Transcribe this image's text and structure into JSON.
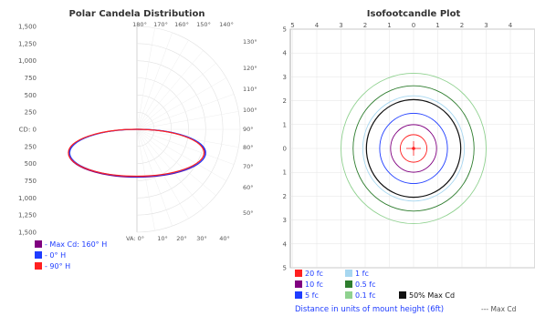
{
  "chart_data": [
    {
      "type": "polar",
      "title": "Polar Candela Distribution",
      "radial_ticks_left": [
        "1,500",
        "1,250",
        "1,000",
        "750",
        "500",
        "250",
        "CD: 0",
        "250",
        "500",
        "750",
        "1,000",
        "1,250",
        "1,500"
      ],
      "angle_labels_top": [
        "180°",
        "170°",
        "160°",
        "150°",
        "140°"
      ],
      "angle_labels_right": [
        "130°",
        "120°",
        "110°",
        "100°",
        "90°",
        "80°",
        "70°",
        "60°",
        "50°"
      ],
      "angle_labels_bottom": [
        "VA: 0°",
        "10°",
        "20°",
        "30°",
        "40°"
      ],
      "series": [
        {
          "name": "- Max Cd: 160° H",
          "color": "#800080",
          "radius": 380
        },
        {
          "name": "- 0° H",
          "color": "#1f3dff",
          "radius": 375
        },
        {
          "name": "- 90° H",
          "color": "#ff2020",
          "radius": 372
        }
      ],
      "scale_max": 1500
    },
    {
      "type": "contour",
      "title": "Isofootcandle Plot",
      "x_ticks": [
        "5",
        "4",
        "3",
        "2",
        "1",
        "0",
        "1",
        "2",
        "3",
        "4"
      ],
      "y_ticks": [
        "5",
        "4",
        "3",
        "2",
        "1",
        "0",
        "1",
        "2",
        "3",
        "4",
        "5"
      ],
      "contours": [
        {
          "label": "20 fc",
          "color": "#ff2020",
          "radius_units": 0.55
        },
        {
          "label": "10 fc",
          "color": "#800080",
          "radius_units": 0.95
        },
        {
          "label": "5 fc",
          "color": "#1f3dff",
          "radius_units": 1.4
        },
        {
          "label": "1 fc",
          "color": "#a7d7f0",
          "radius_units": 2.1
        },
        {
          "label": "0.5 fc",
          "color": "#2e7d2e",
          "radius_units": 2.5
        },
        {
          "label": "0.1 fc",
          "color": "#8fd18f",
          "radius_units": 3.0
        },
        {
          "label": "50% Max Cd",
          "color": "#111111",
          "radius_units": 1.95
        }
      ],
      "footnote": "Distance in units of mount height (6ft)",
      "max_cd_note": "--- Max Cd"
    }
  ]
}
